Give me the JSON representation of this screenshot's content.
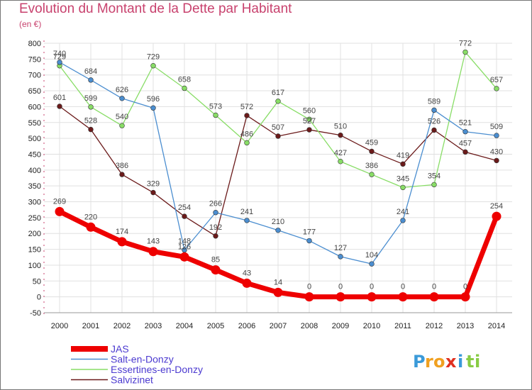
{
  "chart_data": {
    "type": "line",
    "title": "Evolution du Montant de la Dette par Habitant",
    "subtitle": "(en €)",
    "x": [
      "2000",
      "2001",
      "2002",
      "2003",
      "2004",
      "2005",
      "2006",
      "2007",
      "2008",
      "2009",
      "2010",
      "2011",
      "2012",
      "2013",
      "2014"
    ],
    "ylim": [
      -50,
      800
    ],
    "yticks": [
      -50,
      0,
      50,
      100,
      150,
      200,
      250,
      300,
      350,
      400,
      450,
      500,
      550,
      600,
      650,
      700,
      750,
      800
    ],
    "grid": true,
    "legend_position": "bottom-left",
    "series": [
      {
        "name": "Salvizinet",
        "color": "#6b1a1a",
        "values": [
          601,
          528,
          386,
          329,
          254,
          192,
          572,
          507,
          527,
          510,
          459,
          419,
          526,
          457,
          430
        ]
      },
      {
        "name": "Essertines-en-Donzy",
        "color": "#88dd66",
        "values": [
          729,
          599,
          540,
          729,
          658,
          573,
          486,
          617,
          560,
          427,
          386,
          345,
          354,
          772,
          657
        ]
      },
      {
        "name": "Salt-en-Donzy",
        "color": "#4b8ed0",
        "values": [
          740,
          684,
          626,
          596,
          148,
          266,
          241,
          210,
          177,
          127,
          104,
          241,
          589,
          521,
          509
        ]
      },
      {
        "name": "JAS",
        "color": "#ee0000",
        "values": [
          269,
          220,
          174,
          143,
          126,
          85,
          43,
          14,
          0,
          0,
          0,
          0,
          0,
          0,
          254
        ]
      }
    ],
    "legend_order": [
      "JAS",
      "Salt-en-Donzy",
      "Essertines-en-Donzy",
      "Salvizinet"
    ]
  },
  "logo": {
    "letters": [
      "P",
      "r",
      "o",
      "x",
      "i",
      "t",
      "i"
    ],
    "colors": [
      "#3a9ad9",
      "#f0a020",
      "#f0a020",
      "#e03020",
      "#3a9ad9",
      "#88cc44",
      "#88cc44"
    ]
  }
}
